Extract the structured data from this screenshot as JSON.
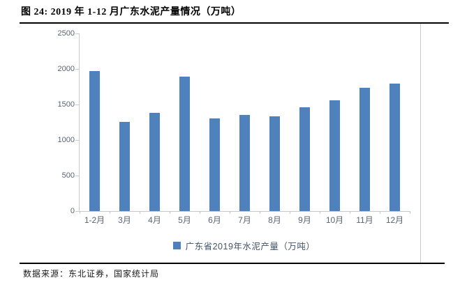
{
  "page": {
    "title": "图  24:  2019 年 1-12 月广东水泥产量情况（万吨）",
    "source": "数据来源：东北证券，国家统计局"
  },
  "chart_data": {
    "type": "bar",
    "title": "图 24: 2019年1-12月广东水泥产量情况（万吨）",
    "categories": [
      "1-2月",
      "3月",
      "4月",
      "5月",
      "6月",
      "7月",
      "8月",
      "9月",
      "10月",
      "11月",
      "12月"
    ],
    "values": [
      1970,
      1255,
      1380,
      1890,
      1300,
      1350,
      1330,
      1465,
      1560,
      1740,
      1790
    ],
    "series_name": "广东省2019年水泥产量（万吨）",
    "legend_entries": [
      "广东省2019年水泥产量（万吨）"
    ],
    "ylabel": "",
    "xlabel": "",
    "ylim": [
      0,
      2500
    ],
    "yticks": [
      0,
      500,
      1000,
      1500,
      2000,
      2500
    ],
    "grid": false,
    "legend_position": "bottom",
    "colors": {
      "bar": "#4F81BD",
      "axis": "#C4CAD1",
      "tick_label": "#5A6472",
      "legend_text": "#44546A"
    }
  }
}
